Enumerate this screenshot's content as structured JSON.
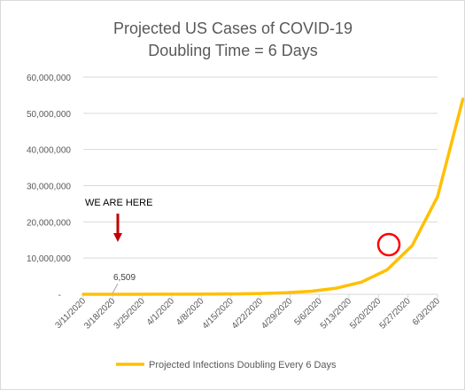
{
  "chart_data": {
    "type": "line",
    "title": [
      "Projected US Cases of COVID-19",
      "Doubling Time = 6 Days"
    ],
    "xlabel": "",
    "ylabel": "",
    "ylim": [
      0,
      60000000
    ],
    "yticks": [
      {
        "value": 0,
        "label": "-"
      },
      {
        "value": 10000000,
        "label": "10,000,000"
      },
      {
        "value": 20000000,
        "label": "20,000,000"
      },
      {
        "value": 30000000,
        "label": "30,000,000"
      },
      {
        "value": 40000000,
        "label": "40,000,000"
      },
      {
        "value": 50000000,
        "label": "50,000,000"
      },
      {
        "value": 60000000,
        "label": "60,000,000"
      }
    ],
    "categories": [
      "3/11/2020",
      "3/18/2020",
      "3/25/2020",
      "4/1/2020",
      "4/8/2020",
      "4/15/2020",
      "4/22/2020",
      "4/29/2020",
      "5/6/2020",
      "5/13/2020",
      "5/20/2020",
      "5/27/2020",
      "6/3/2020"
    ],
    "grid": true,
    "legend_position": "bottom",
    "series": [
      {
        "name": "Projected Infections Doubling Every 6 Days",
        "color": "#FFC000",
        "points": [
          {
            "date": "3/11/2020",
            "value": 1645
          },
          {
            "date": "3/17/2020",
            "value": 3291
          },
          {
            "date": "3/23/2020",
            "value": 6582
          },
          {
            "date": "3/29/2020",
            "value": 13164
          },
          {
            "date": "4/4/2020",
            "value": 26328
          },
          {
            "date": "4/10/2020",
            "value": 52656
          },
          {
            "date": "4/16/2020",
            "value": 105312
          },
          {
            "date": "4/22/2020",
            "value": 210624
          },
          {
            "date": "4/28/2020",
            "value": 421248
          },
          {
            "date": "5/4/2020",
            "value": 842496
          },
          {
            "date": "5/10/2020",
            "value": 1684992
          },
          {
            "date": "5/16/2020",
            "value": 3369984
          },
          {
            "date": "5/22/2020",
            "value": 6739968
          },
          {
            "date": "5/28/2020",
            "value": 13479936
          },
          {
            "date": "6/3/2020",
            "value": 26959872
          },
          {
            "date": "6/9/2020",
            "value": 53919744
          }
        ]
      }
    ],
    "annotations": {
      "we_are_here": "WE ARE HERE",
      "data_label": "6,509",
      "arrow_color": "#C00000",
      "circle_color": "#FF0000"
    }
  }
}
